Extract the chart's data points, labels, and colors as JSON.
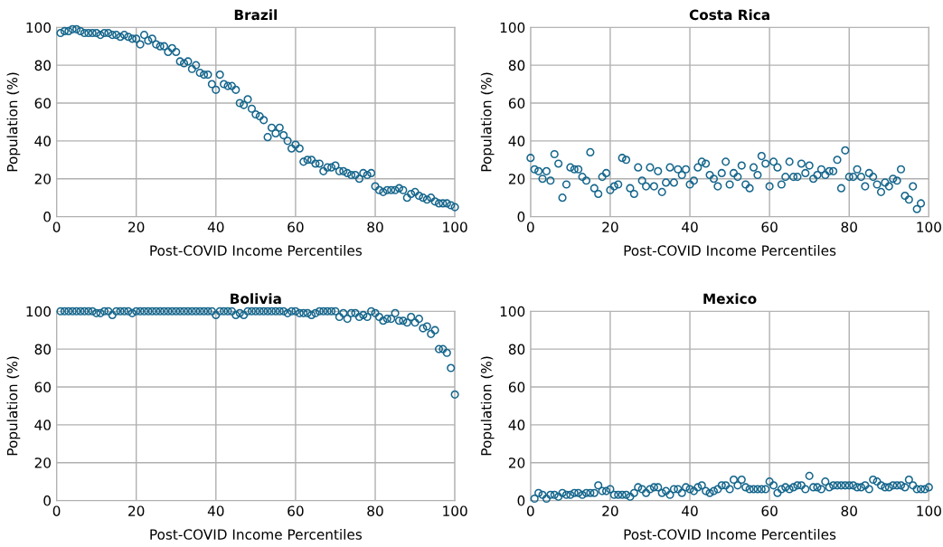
{
  "chart_data": [
    {
      "type": "scatter",
      "title": "Brazil",
      "xlabel": "Post-COVID Income Percentiles",
      "ylabel": "Population (%)",
      "xlim": [
        0,
        100
      ],
      "ylim": [
        0,
        100
      ],
      "xticks": [
        0,
        20,
        40,
        60,
        80,
        100
      ],
      "yticks": [
        0,
        20,
        40,
        60,
        80,
        100
      ],
      "grid": true,
      "marker": "circle",
      "series": [
        {
          "color": "#15668c",
          "x": [
            1,
            2,
            3,
            4,
            5,
            6,
            7,
            8,
            9,
            10,
            11,
            12,
            13,
            14,
            15,
            16,
            17,
            18,
            19,
            20,
            21,
            22,
            23,
            24,
            25,
            26,
            27,
            28,
            29,
            30,
            31,
            32,
            33,
            34,
            35,
            36,
            37,
            38,
            39,
            40,
            41,
            42,
            43,
            44,
            45,
            46,
            47,
            48,
            49,
            50,
            51,
            52,
            53,
            54,
            55,
            56,
            57,
            58,
            59,
            60,
            61,
            62,
            63,
            64,
            65,
            66,
            67,
            68,
            69,
            70,
            71,
            72,
            73,
            74,
            75,
            76,
            77,
            78,
            79,
            80,
            81,
            82,
            83,
            84,
            85,
            86,
            87,
            88,
            89,
            90,
            91,
            92,
            93,
            94,
            95,
            96,
            97,
            98,
            99,
            100
          ],
          "values": [
            97,
            98,
            98,
            99,
            99,
            98,
            97,
            97,
            97,
            97,
            96,
            97,
            97,
            96,
            96,
            95,
            96,
            95,
            94,
            94,
            91,
            96,
            93,
            94,
            91,
            90,
            90,
            87,
            89,
            87,
            82,
            81,
            82,
            78,
            80,
            76,
            75,
            75,
            70,
            67,
            75,
            70,
            69,
            69,
            67,
            60,
            59,
            62,
            57,
            54,
            53,
            51,
            42,
            47,
            44,
            47,
            43,
            40,
            36,
            38,
            36,
            29,
            30,
            30,
            28,
            28,
            24,
            26,
            26,
            27,
            24,
            24,
            23,
            22,
            22,
            20,
            23,
            22,
            23,
            16,
            14,
            13,
            14,
            14,
            14,
            15,
            14,
            10,
            12,
            13,
            11,
            10,
            9,
            10,
            8,
            7,
            7,
            7,
            6,
            5
          ]
        }
      ]
    },
    {
      "type": "scatter",
      "title": "Costa Rica",
      "xlabel": "Post-COVID Income Percentiles",
      "ylabel": "Population (%)",
      "xlim": [
        0,
        100
      ],
      "ylim": [
        0,
        100
      ],
      "xticks": [
        0,
        20,
        40,
        60,
        80,
        100
      ],
      "yticks": [
        0,
        20,
        40,
        60,
        80,
        100
      ],
      "grid": true,
      "marker": "circle",
      "series": [
        {
          "color": "#15668c",
          "x": [
            0,
            1,
            2,
            3,
            4,
            5,
            6,
            7,
            8,
            9,
            10,
            11,
            12,
            13,
            14,
            15,
            16,
            17,
            18,
            19,
            20,
            21,
            22,
            23,
            24,
            25,
            26,
            27,
            28,
            29,
            30,
            31,
            32,
            33,
            34,
            35,
            36,
            37,
            38,
            39,
            40,
            41,
            42,
            43,
            44,
            45,
            46,
            47,
            48,
            49,
            50,
            51,
            52,
            53,
            54,
            55,
            56,
            57,
            58,
            59,
            60,
            61,
            62,
            63,
            64,
            65,
            66,
            67,
            68,
            69,
            70,
            71,
            72,
            73,
            74,
            75,
            76,
            77,
            78,
            79,
            80,
            81,
            82,
            83,
            84,
            85,
            86,
            87,
            88,
            89,
            90,
            91,
            92,
            93,
            94,
            95,
            96,
            97,
            98
          ],
          "values": [
            31,
            25,
            24,
            20,
            24,
            19,
            33,
            28,
            10,
            17,
            26,
            25,
            25,
            21,
            19,
            34,
            15,
            12,
            21,
            23,
            14,
            16,
            17,
            31,
            30,
            15,
            12,
            26,
            19,
            16,
            26,
            16,
            24,
            13,
            18,
            26,
            18,
            25,
            22,
            25,
            17,
            19,
            26,
            29,
            28,
            22,
            20,
            16,
            23,
            29,
            17,
            23,
            21,
            27,
            17,
            15,
            26,
            22,
            32,
            28,
            16,
            29,
            26,
            17,
            21,
            29,
            21,
            21,
            28,
            23,
            27,
            20,
            22,
            25,
            22,
            24,
            24,
            30,
            15,
            35,
            21,
            21,
            25,
            21,
            16,
            23,
            21,
            17,
            13,
            18,
            16,
            20,
            19,
            25,
            11,
            9,
            16,
            4,
            7
          ]
        }
      ]
    },
    {
      "type": "scatter",
      "title": "Bolivia",
      "xlabel": "Post-COVID Income Percentiles",
      "ylabel": "Population (%)",
      "xlim": [
        0,
        100
      ],
      "ylim": [
        0,
        100
      ],
      "xticks": [
        0,
        20,
        40,
        60,
        80,
        100
      ],
      "yticks": [
        0,
        20,
        40,
        60,
        80,
        100
      ],
      "grid": true,
      "marker": "circle",
      "series": [
        {
          "color": "#15668c",
          "x": [
            1,
            2,
            3,
            4,
            5,
            6,
            7,
            8,
            9,
            10,
            11,
            12,
            13,
            14,
            15,
            16,
            17,
            18,
            19,
            20,
            21,
            22,
            23,
            24,
            25,
            26,
            27,
            28,
            29,
            30,
            31,
            32,
            33,
            34,
            35,
            36,
            37,
            38,
            39,
            40,
            41,
            42,
            43,
            44,
            45,
            46,
            47,
            48,
            49,
            50,
            51,
            52,
            53,
            54,
            55,
            56,
            57,
            58,
            59,
            60,
            61,
            62,
            63,
            64,
            65,
            66,
            67,
            68,
            69,
            70,
            71,
            72,
            73,
            74,
            75,
            76,
            77,
            78,
            79,
            80,
            81,
            82,
            83,
            84,
            85,
            86,
            87,
            88,
            89,
            90,
            91,
            92,
            93,
            94,
            95,
            96,
            97,
            98,
            99,
            100
          ],
          "values": [
            100,
            100,
            100,
            100,
            100,
            100,
            100,
            100,
            100,
            99,
            99,
            100,
            100,
            98,
            100,
            100,
            100,
            100,
            99,
            100,
            100,
            100,
            100,
            100,
            100,
            100,
            100,
            100,
            100,
            100,
            100,
            100,
            100,
            100,
            100,
            100,
            100,
            100,
            100,
            98,
            100,
            100,
            100,
            100,
            98,
            99,
            98,
            100,
            100,
            100,
            100,
            100,
            100,
            100,
            100,
            100,
            100,
            99,
            100,
            100,
            99,
            99,
            99,
            98,
            99,
            100,
            100,
            100,
            100,
            100,
            97,
            99,
            96,
            99,
            99,
            97,
            98,
            97,
            100,
            99,
            97,
            95,
            96,
            96,
            99,
            95,
            95,
            94,
            97,
            94,
            96,
            91,
            92,
            88,
            90,
            80,
            80,
            78,
            70,
            56
          ]
        }
      ]
    },
    {
      "type": "scatter",
      "title": "Mexico",
      "xlabel": "Post-COVID Income Percentiles",
      "ylabel": "Population (%)",
      "xlim": [
        0,
        100
      ],
      "ylim": [
        0,
        100
      ],
      "xticks": [
        0,
        20,
        40,
        60,
        80,
        100
      ],
      "yticks": [
        0,
        20,
        40,
        60,
        80,
        100
      ],
      "grid": true,
      "marker": "circle",
      "series": [
        {
          "color": "#15668c",
          "x": [
            1,
            2,
            3,
            4,
            5,
            6,
            7,
            8,
            9,
            10,
            11,
            12,
            13,
            14,
            15,
            16,
            17,
            18,
            19,
            20,
            21,
            22,
            23,
            24,
            25,
            26,
            27,
            28,
            29,
            30,
            31,
            32,
            33,
            34,
            35,
            36,
            37,
            38,
            39,
            40,
            41,
            42,
            43,
            44,
            45,
            46,
            47,
            48,
            49,
            50,
            51,
            52,
            53,
            54,
            55,
            56,
            57,
            58,
            59,
            60,
            61,
            62,
            63,
            64,
            65,
            66,
            67,
            68,
            69,
            70,
            71,
            72,
            73,
            74,
            75,
            76,
            77,
            78,
            79,
            80,
            81,
            82,
            83,
            84,
            85,
            86,
            87,
            88,
            89,
            90,
            91,
            92,
            93,
            94,
            95,
            96,
            97,
            98,
            99,
            100
          ],
          "values": [
            1,
            4,
            3,
            1,
            3,
            3,
            2,
            4,
            3,
            3,
            4,
            4,
            3,
            4,
            4,
            4,
            8,
            5,
            5,
            6,
            3,
            3,
            3,
            3,
            2,
            4,
            7,
            6,
            4,
            6,
            7,
            7,
            4,
            5,
            3,
            6,
            6,
            4,
            7,
            6,
            5,
            7,
            8,
            5,
            4,
            5,
            6,
            8,
            8,
            6,
            11,
            8,
            11,
            7,
            6,
            6,
            6,
            6,
            6,
            10,
            8,
            4,
            6,
            7,
            6,
            7,
            8,
            8,
            6,
            13,
            7,
            7,
            6,
            10,
            7,
            8,
            8,
            8,
            8,
            8,
            8,
            7,
            7,
            8,
            6,
            11,
            10,
            8,
            7,
            7,
            8,
            8,
            8,
            7,
            11,
            8,
            6,
            6,
            6,
            7
          ]
        }
      ]
    }
  ]
}
